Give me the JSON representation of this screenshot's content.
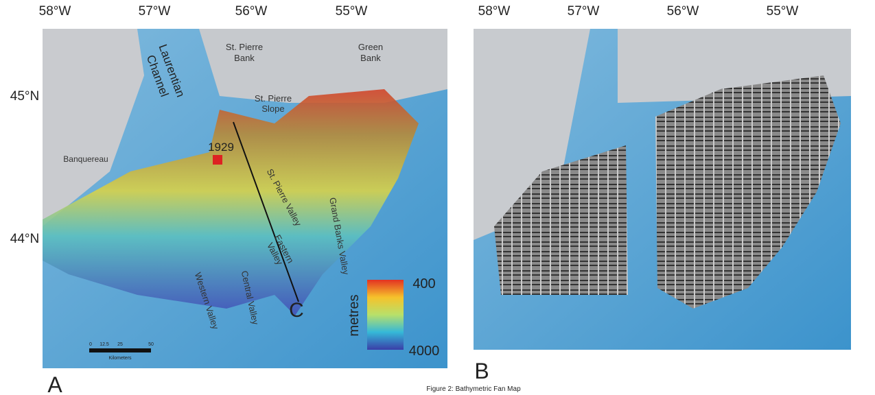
{
  "panel_a": {
    "letter": "A",
    "lon_labels": [
      "58°W",
      "57°W",
      "56°W",
      "55°W"
    ],
    "lat_labels": [
      "45°N",
      "44°N"
    ],
    "features": {
      "laurentian_channel": [
        "Laurentian",
        "Channel"
      ],
      "st_pierre_bank": [
        "St. Pierre",
        "Bank"
      ],
      "green_bank": [
        "Green",
        "Bank"
      ],
      "st_pierre_slope": [
        "St. Pierre",
        "Slope"
      ],
      "banquereau": "Banquereau",
      "st_pierre_valley": "St. Pierre Valley",
      "grand_banks_valley": "Grand Banks Valley",
      "eastern_valley": [
        "Eastern",
        "Valley"
      ],
      "western_valley": "Western Valley",
      "central_valley": "Central Valley"
    },
    "event_year": "1929",
    "section": "C",
    "legend": {
      "title": "metres",
      "top": "400",
      "bottom": "4000"
    },
    "scale": {
      "ticks": [
        "0",
        "12.5",
        "25",
        "50"
      ],
      "unit": "Kilometers"
    }
  },
  "panel_b": {
    "letter": "B",
    "lon_labels": [
      "58°W",
      "57°W",
      "56°W",
      "55°W"
    ]
  },
  "caption": "Figure 2: Bathymetric Fan Map"
}
